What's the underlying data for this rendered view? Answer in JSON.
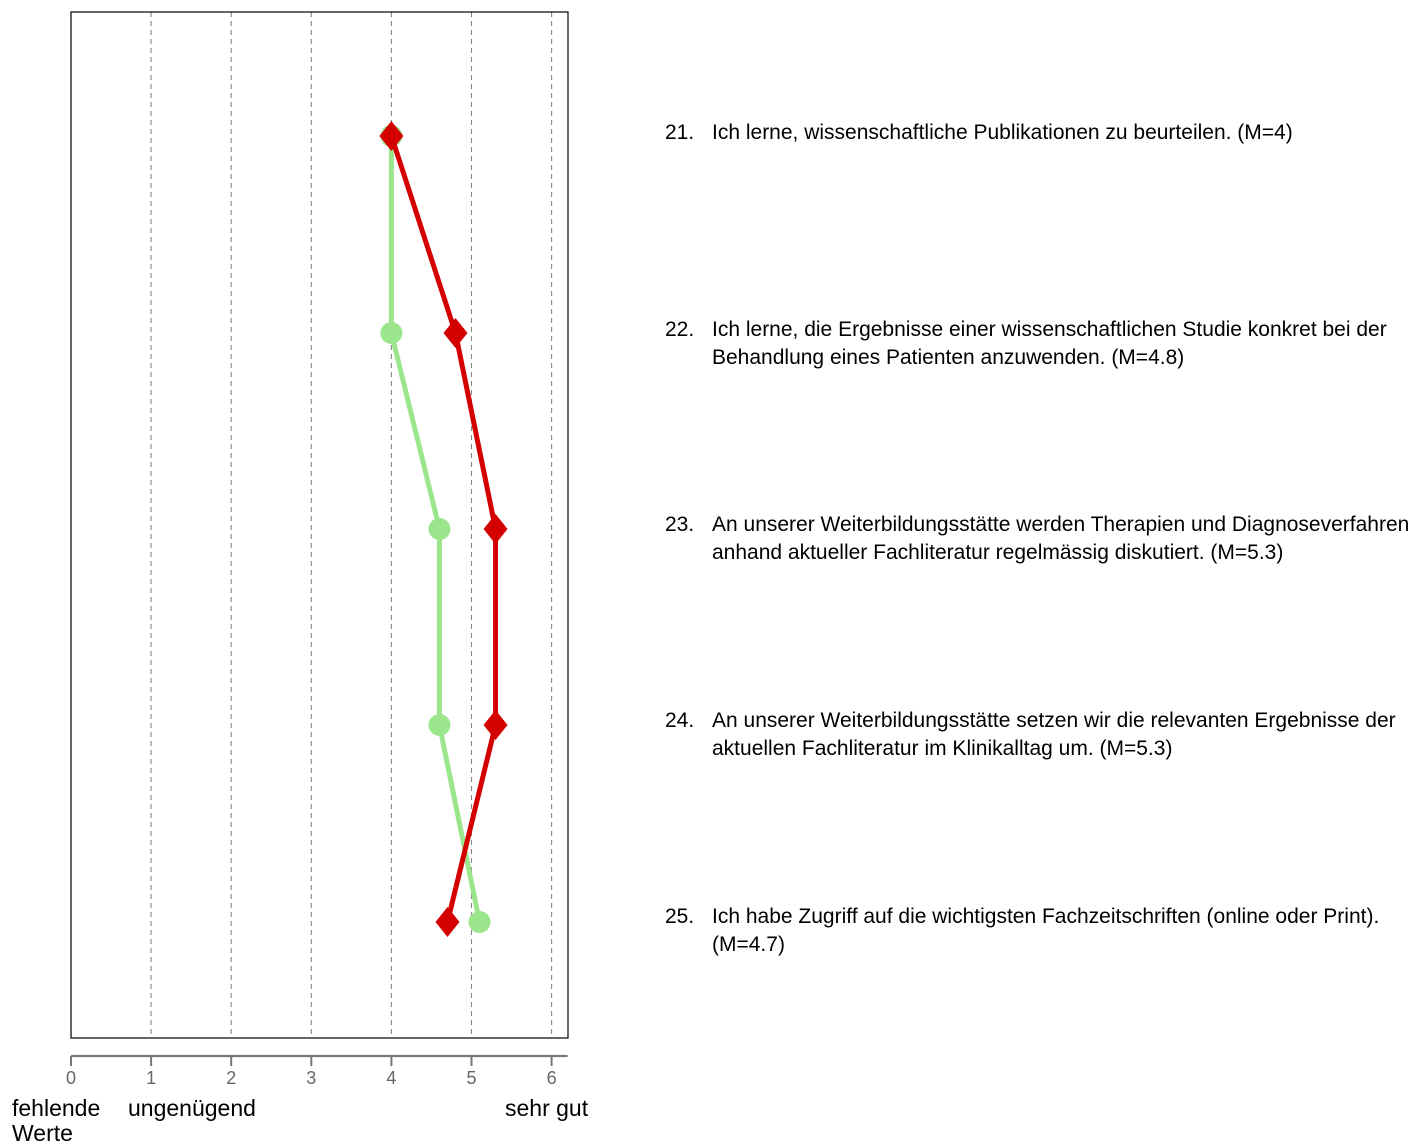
{
  "chart_data": {
    "type": "line",
    "x_ticks": [
      "0",
      "1",
      "2",
      "3",
      "4",
      "5",
      "6"
    ],
    "xlim": [
      0,
      6.2
    ],
    "grid": "vertical dashed",
    "items": [
      {
        "number": "21.",
        "text": "Ich lerne, wissenschaftliche Publikationen zu beurteilen. (M=4)"
      },
      {
        "number": "22.",
        "text": "Ich lerne, die Ergebnisse einer wissenschaftlichen Studie konkret bei der Behandlung eines Patienten anzuwenden. (M=4.8)"
      },
      {
        "number": "23.",
        "text": "An unserer Weiterbildungsstätte werden Therapien und Diagnoseverfahren anhand aktueller Fachliteratur regelmässig diskutiert. (M=5.3)"
      },
      {
        "number": "24.",
        "text": "An unserer Weiterbildungsstätte setzen wir die relevanten Ergebnisse der aktuellen Fachliteratur im Klinikalltag um. (M=5.3)"
      },
      {
        "number": "25.",
        "text": "Ich habe Zugriff auf die wichtigsten Fachzeitschriften (online oder Print). (M=4.7)"
      }
    ],
    "series": [
      {
        "marker": "circle",
        "color": "#9be68c",
        "values": [
          4.0,
          4.0,
          4.6,
          4.6,
          5.1
        ]
      },
      {
        "marker": "diamond",
        "color": "#d40000",
        "values": [
          4.0,
          4.8,
          5.3,
          5.3,
          4.7
        ]
      }
    ],
    "scale_labels": {
      "left": "fehlende Werte",
      "low": "ungenügend",
      "high": "sehr gut"
    }
  }
}
